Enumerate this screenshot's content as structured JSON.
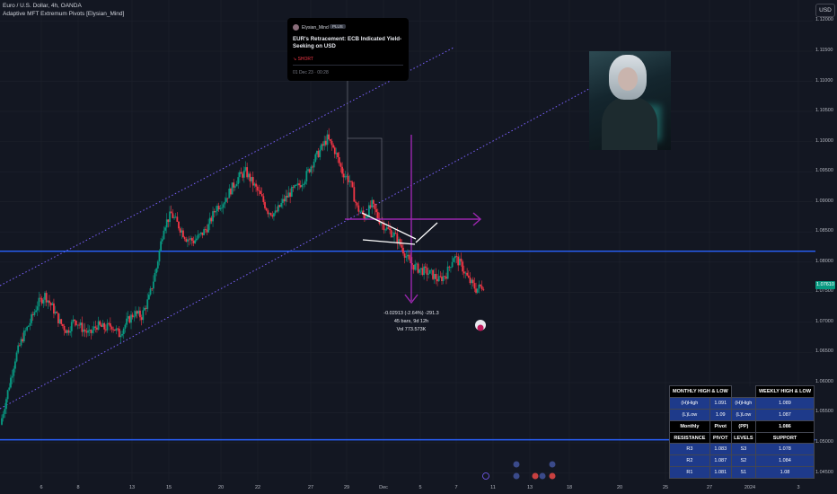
{
  "header": {
    "symbol_line": "Euro / U.S. Dollar, 4h, OANDA",
    "indicator_line": "Adaptive MFT Extremum Pivots [Elysian_Mind]",
    "currency_button": "USD"
  },
  "idea_card": {
    "author": "Elysian_Mind",
    "badge": "PLUS",
    "title": "EUR's Retracement: ECB Indicated Yield-Seeking on USD",
    "signal": "↘ SHORT",
    "datetime": "01 Dec 23 · 00:28"
  },
  "measure": {
    "line1": "-0.02913 (-2.64%) -291.3",
    "line2": "45 bars, 9d 12h",
    "line3": "Vol 773.573K"
  },
  "chart_data": {
    "type": "candlestick",
    "title": "Euro / U.S. Dollar, 4h, OANDA",
    "y_axis_labels": [
      "1.12000",
      "1.11500",
      "1.11000",
      "1.10500",
      "1.10000",
      "1.09500",
      "1.09000",
      "1.08500",
      "1.08000",
      "1.07500",
      "1.07000",
      "1.06500",
      "1.06000",
      "1.05500",
      "1.05000",
      "1.04500"
    ],
    "ylim": [
      1.0415,
      1.1235
    ],
    "x_axis_labels": [
      "6",
      "8",
      "13",
      "15",
      "20",
      "22",
      "27",
      "29",
      "Dec",
      "5",
      "7",
      "11",
      "13",
      "18",
      "20",
      "25",
      "27",
      "2024",
      "3"
    ],
    "current_price": "1.07610",
    "horizontal_levels": [
      1.0818,
      1.0505
    ],
    "price_path": [
      1.053,
      1.0585,
      1.064,
      1.0675,
      1.07,
      1.073,
      1.0745,
      1.0725,
      1.07,
      1.0685,
      1.0705,
      1.069,
      1.068,
      1.0695,
      1.069,
      1.0695,
      1.068,
      1.07,
      1.0715,
      1.071,
      1.074,
      1.079,
      1.086,
      1.088,
      1.086,
      1.084,
      1.0835,
      1.0845,
      1.086,
      1.089,
      1.09,
      1.092,
      1.094,
      1.095,
      1.093,
      1.091,
      1.0885,
      1.088,
      1.09,
      1.0915,
      1.0925,
      1.094,
      1.0965,
      1.0985,
      1.1005,
      1.0985,
      1.095,
      1.0935,
      1.089,
      1.0875,
      1.0895,
      1.087,
      1.0855,
      1.0845,
      1.0825,
      1.08,
      1.079,
      1.0785,
      1.078,
      1.077,
      1.078,
      1.081,
      1.0795,
      1.077,
      1.0755,
      1.0761
    ]
  },
  "pivot_table": {
    "monthly_head": "MONTHLY HIGH & LOW",
    "weekly_head": "WEEKLY HIGH & LOW",
    "monthly_high_label": "(H)High",
    "monthly_high": "1.091",
    "weekly_high_label": "(H)High",
    "weekly_high": "1.089",
    "monthly_low_label": "(L)Low",
    "monthly_low": "1.09",
    "weekly_low_label": "(L)Low",
    "weekly_low": "1.087",
    "monthly_label": "Monthly",
    "pivot_label": "Pivot",
    "pp_label": "(PP)",
    "pp_value": "1.086",
    "resistance_head": "RESISTANCE",
    "pivot_head": "PIVOT",
    "levels_head": "LEVELS",
    "support_head": "SUPPORT",
    "rows": [
      {
        "r": "R3",
        "rv": "1.083",
        "s": "S3",
        "sv": "1.078"
      },
      {
        "r": "R2",
        "rv": "1.087",
        "s": "S2",
        "sv": "1.084"
      },
      {
        "r": "R1",
        "rv": "1.081",
        "s": "S1",
        "sv": "1.08"
      }
    ]
  },
  "colors": {
    "up": "#089981",
    "down": "#f23645",
    "level": "#2962ff",
    "channel": "#7b61ff",
    "arrow": "#9c27b0"
  }
}
